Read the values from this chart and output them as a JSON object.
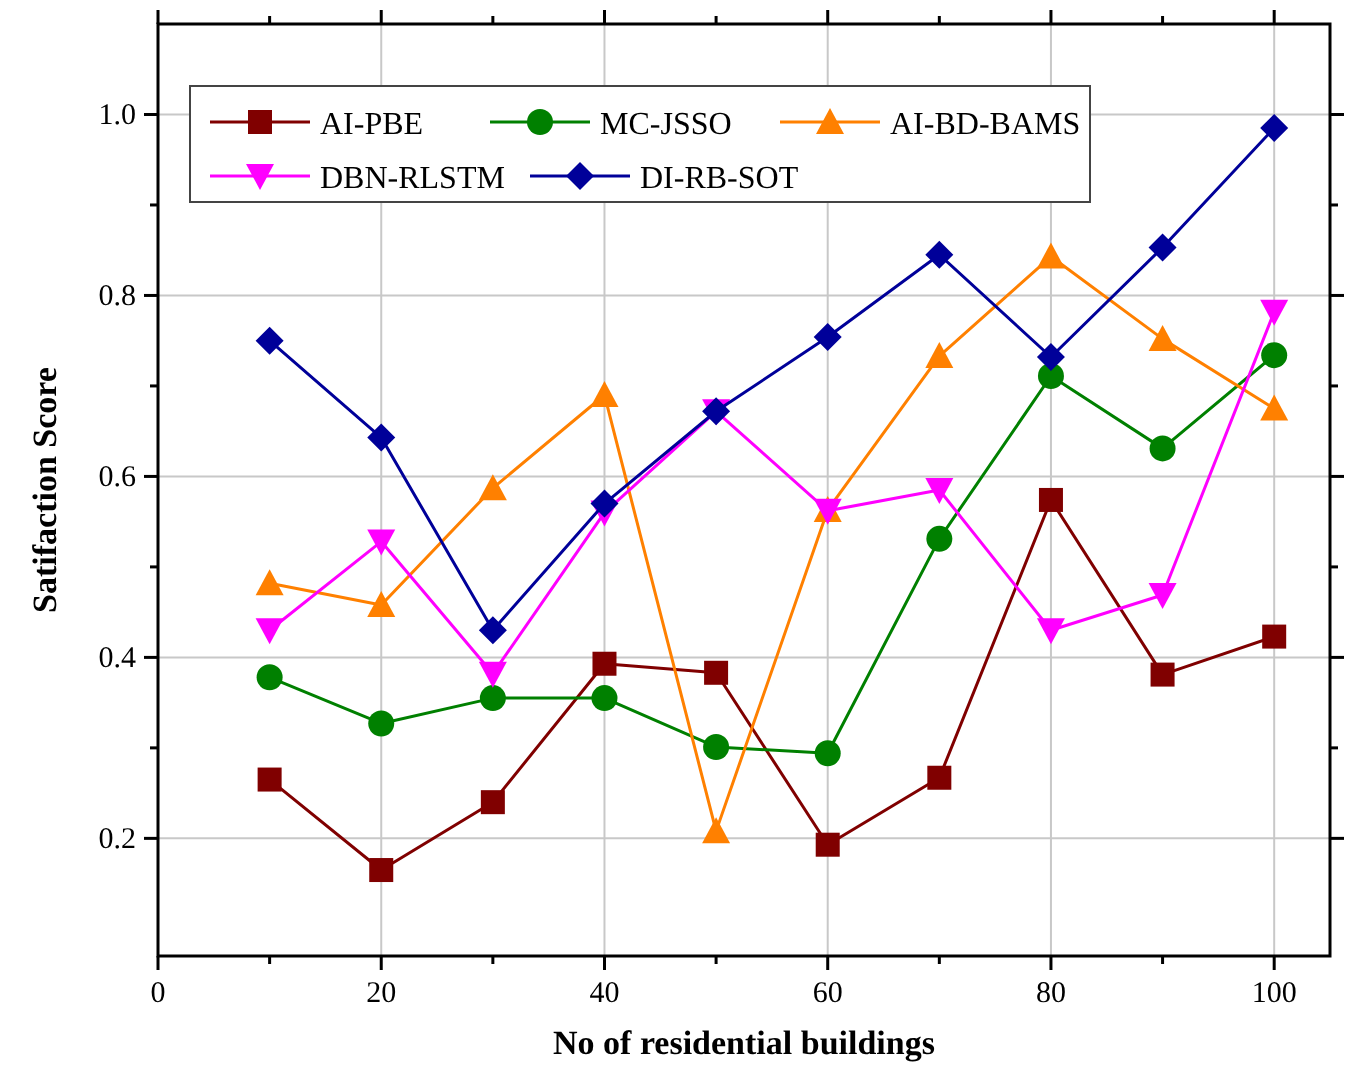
{
  "chart_data": {
    "type": "line",
    "xlabel": "No of residential buildings",
    "ylabel": "Satifaction Score",
    "x": [
      10,
      20,
      30,
      40,
      50,
      60,
      70,
      80,
      90,
      100
    ],
    "xlim": [
      0,
      105
    ],
    "xticks": [
      0,
      {
        "value": 10,
        "label": null
      },
      20,
      {
        "value": 30,
        "label": null
      },
      40,
      {
        "value": 50,
        "label": null
      },
      60,
      {
        "value": 70,
        "label": null
      },
      80,
      {
        "value": 90,
        "label": null
      },
      100
    ],
    "ylim": [
      0.07,
      1.1
    ],
    "yticks": [
      0.2,
      {
        "value": 0.3,
        "label": null
      },
      0.4,
      {
        "value": 0.5,
        "label": null
      },
      0.6,
      {
        "value": 0.7,
        "label": null
      },
      0.8,
      {
        "value": 0.9,
        "label": null
      },
      {
        "value": 1,
        "label": "1.0"
      }
    ],
    "grid": true,
    "legend": "top left",
    "line_style": "solid",
    "series": [
      {
        "name": "AI-PBE",
        "color": "#800000",
        "marker": "square",
        "values": [
          0.265,
          0.165,
          0.24,
          0.393,
          0.383,
          0.193,
          0.267,
          0.574,
          0.381,
          0.423
        ]
      },
      {
        "name": "MC-JSSO",
        "color": "#008000",
        "marker": "circle",
        "values": [
          0.378,
          0.327,
          0.355,
          0.355,
          0.301,
          0.294,
          0.531,
          0.711,
          0.631,
          0.734
        ]
      },
      {
        "name": "AI-BD-BAMS",
        "color": "#ff8000",
        "marker": "triangle",
        "values": [
          0.482,
          0.458,
          0.587,
          0.69,
          0.208,
          0.563,
          0.733,
          0.843,
          0.752,
          0.675
        ]
      },
      {
        "name": "DBN-RLSTM",
        "color": "#ff00ff",
        "marker": "triangle-down",
        "values": [
          0.43,
          0.528,
          0.382,
          0.56,
          0.672,
          0.562,
          0.585,
          0.43,
          0.469,
          0.782
        ]
      },
      {
        "name": "DI-RB-SOT",
        "color": "#000099",
        "marker": "diamond",
        "values": [
          0.75,
          0.643,
          0.43,
          0.57,
          0.672,
          0.754,
          0.845,
          0.732,
          0.853,
          0.985
        ]
      }
    ]
  }
}
